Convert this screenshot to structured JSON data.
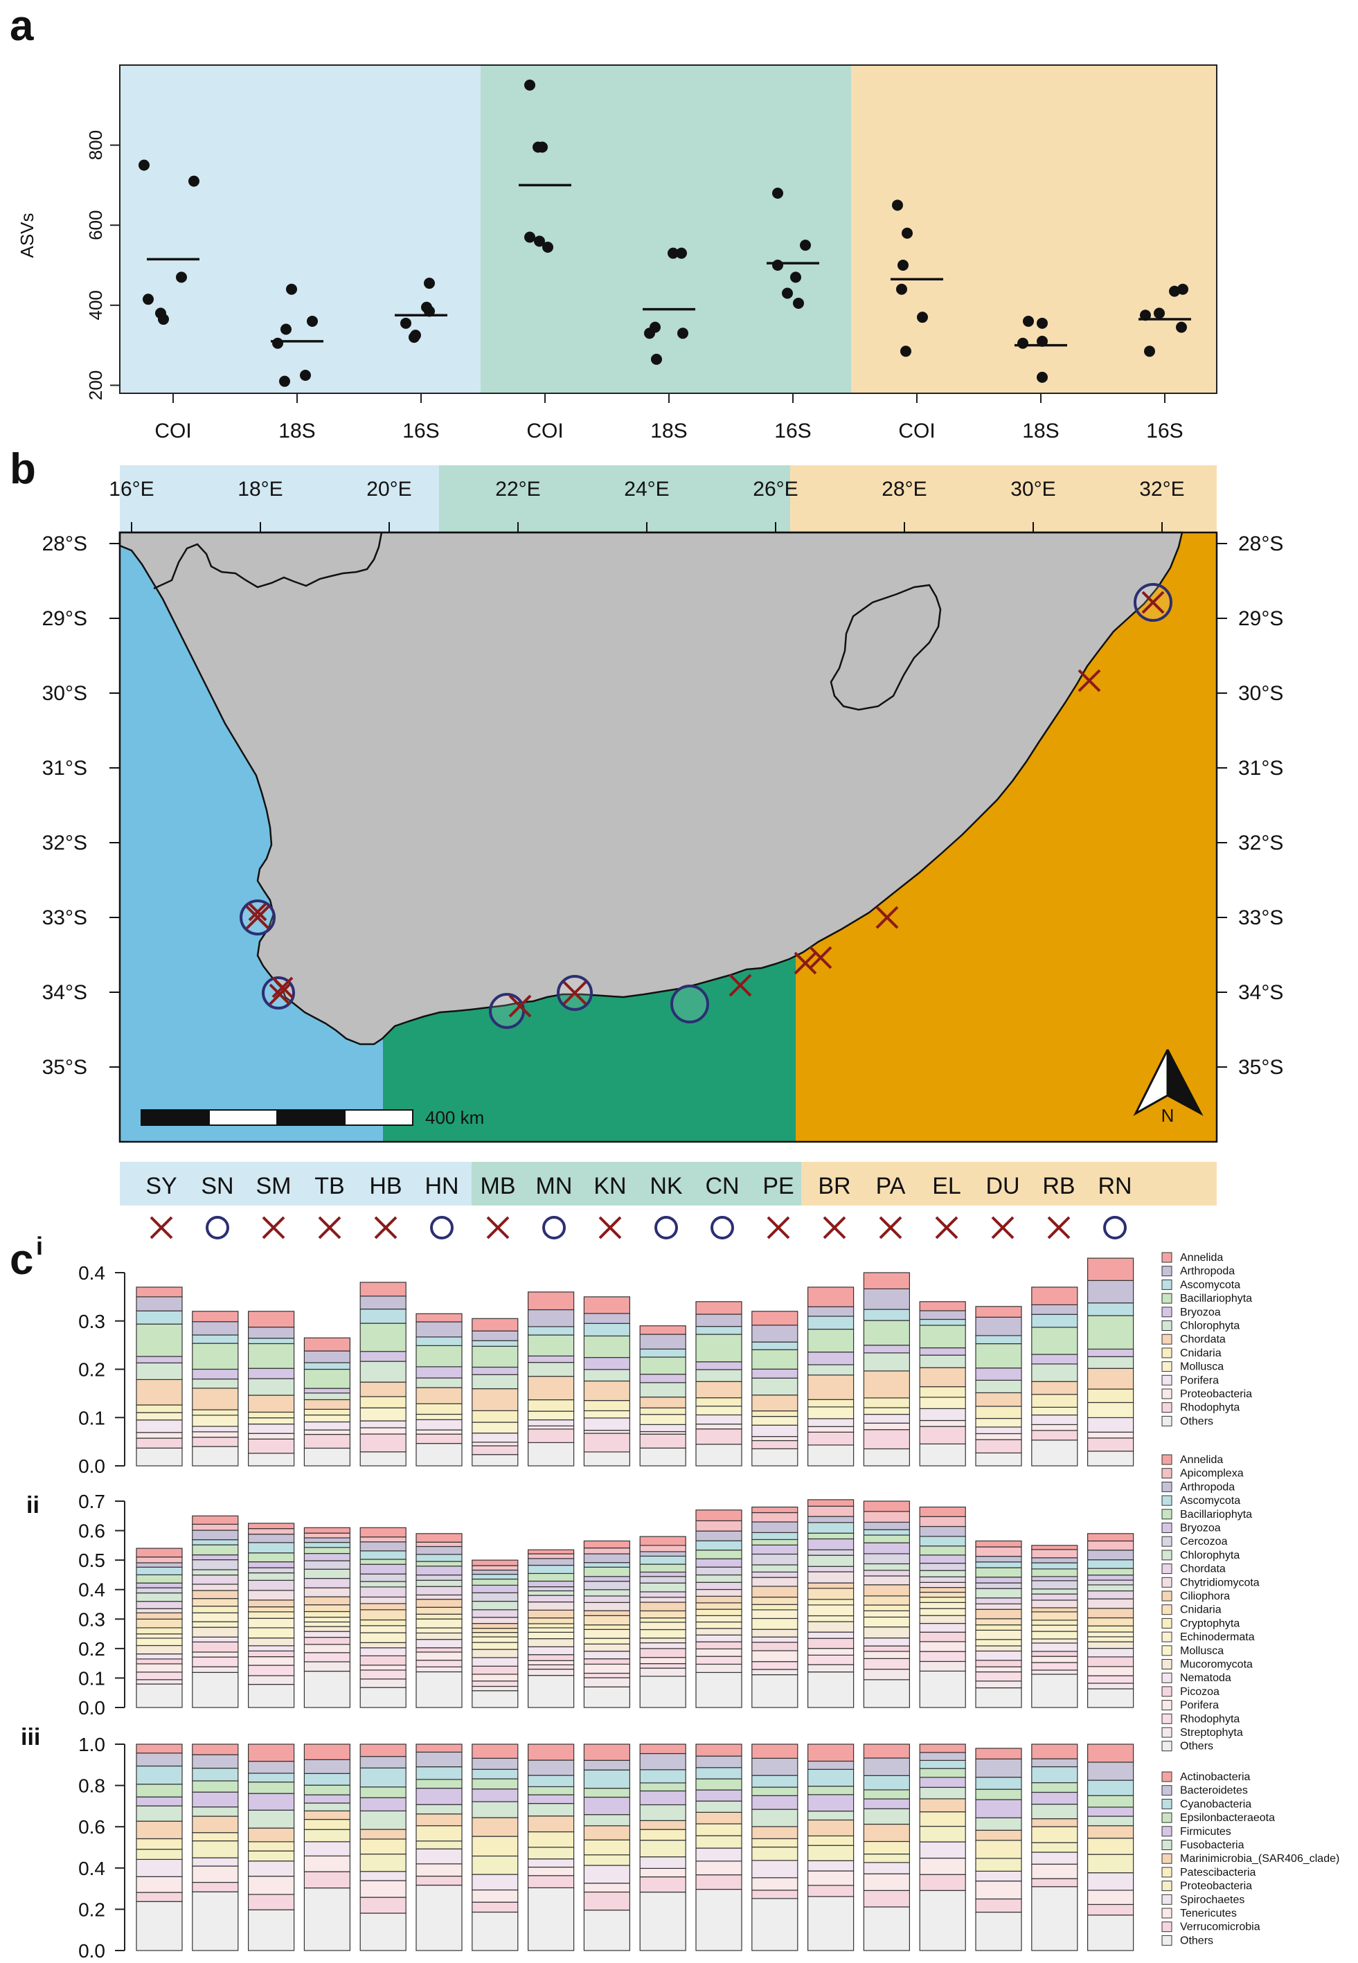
{
  "panel_labels": {
    "a": "a",
    "b": "b",
    "c": "c",
    "c_sup": "i",
    "ii": "ii",
    "iii": "iii"
  },
  "colors": {
    "west": "#d2e8f2",
    "south": "#b7dcd1",
    "east": "#f7deb1",
    "west_sea": "#73c0e2",
    "south_sea": "#1f9e73",
    "east_sea": "#e69f00",
    "land": "#bebebe",
    "cross": "#8b1a1a",
    "circle": "#2c2f73"
  },
  "chart_data": [
    {
      "type": "scatter",
      "ylabel": "ASVs",
      "ylim": [
        180,
        1000
      ],
      "yticks": [
        200,
        400,
        600,
        800
      ],
      "categories": [
        "COI",
        "18S",
        "16S",
        "COI",
        "18S",
        "16S",
        "COI",
        "18S",
        "16S"
      ],
      "regions": [
        "west",
        "west",
        "west",
        "south",
        "south",
        "south",
        "east",
        "east",
        "east"
      ],
      "points": [
        [
          750,
          710,
          470,
          415,
          380,
          365
        ],
        [
          440,
          360,
          340,
          305,
          225,
          210
        ],
        [
          455,
          395,
          385,
          355,
          325,
          320
        ],
        [
          950,
          795,
          795,
          570,
          560,
          545
        ],
        [
          530,
          530,
          345,
          330,
          330,
          265
        ],
        [
          680,
          550,
          500,
          470,
          430,
          405
        ],
        [
          650,
          580,
          500,
          440,
          370,
          285
        ],
        [
          360,
          355,
          310,
          305,
          220
        ],
        [
          440,
          435,
          380,
          375,
          345,
          285
        ]
      ],
      "means": [
        515,
        310,
        375,
        700,
        390,
        505,
        465,
        300,
        365
      ]
    },
    {
      "type": "stacked-bar",
      "id": "ci",
      "ylim": [
        0,
        0.4
      ],
      "yticks": [
        "0.0",
        "0.1",
        "0.2",
        "0.3",
        "0.4"
      ],
      "categories": [
        "SY",
        "SN",
        "SM",
        "TB",
        "HB",
        "HN",
        "MB",
        "MN",
        "KN",
        "NK",
        "CN",
        "PE",
        "BR",
        "PA",
        "EL",
        "DU",
        "RB",
        "RN"
      ],
      "legend": [
        {
          "name": "Annelida",
          "color": "#f4a3a3"
        },
        {
          "name": "Arthropoda",
          "color": "#c7c1d8"
        },
        {
          "name": "Ascomycota",
          "color": "#bcdfe3"
        },
        {
          "name": "Bacillariophyta",
          "color": "#c9e4c1"
        },
        {
          "name": "Bryozoa",
          "color": "#d6c6e6"
        },
        {
          "name": "Chlorophyta",
          "color": "#d4e6d4"
        },
        {
          "name": "Chordata",
          "color": "#f5d5b5"
        },
        {
          "name": "Cnidaria",
          "color": "#f7efc2"
        },
        {
          "name": "Mollusca",
          "color": "#f8f3cc"
        },
        {
          "name": "Porifera",
          "color": "#f1e5ef"
        },
        {
          "name": "Proteobacteria",
          "color": "#f9e9e9"
        },
        {
          "name": "Rhodophyta",
          "color": "#f6d6de"
        },
        {
          "name": "Others",
          "color": "#eeeeee"
        }
      ],
      "totals": [
        0.37,
        0.32,
        0.32,
        0.265,
        0.38,
        0.315,
        0.305,
        0.36,
        0.35,
        0.29,
        0.34,
        0.32,
        0.37,
        0.4,
        0.34,
        0.33,
        0.37,
        0.43
      ]
    },
    {
      "type": "stacked-bar",
      "id": "cii",
      "ylim": [
        0,
        0.7
      ],
      "yticks": [
        "0.0",
        "0.1",
        "0.2",
        "0.3",
        "0.4",
        "0.5",
        "0.6",
        "0.7"
      ],
      "categories": [
        "SY",
        "SN",
        "SM",
        "TB",
        "HB",
        "HN",
        "MB",
        "MN",
        "KN",
        "NK",
        "CN",
        "PE",
        "BR",
        "PA",
        "EL",
        "DU",
        "RB",
        "RN"
      ],
      "legend": [
        {
          "name": "Annelida",
          "color": "#f4a3a3"
        },
        {
          "name": "Apicomplexa",
          "color": "#f4c0c4"
        },
        {
          "name": "Arthropoda",
          "color": "#c7c1d8"
        },
        {
          "name": "Ascomycota",
          "color": "#bcdfe3"
        },
        {
          "name": "Bacillariophyta",
          "color": "#c9e4c1"
        },
        {
          "name": "Bryozoa",
          "color": "#d6c6e6"
        },
        {
          "name": "Cercozoa",
          "color": "#d9d5e2"
        },
        {
          "name": "Chlorophyta",
          "color": "#d4e6d4"
        },
        {
          "name": "Chordata",
          "color": "#e7d5e8"
        },
        {
          "name": "Chytridiomycota",
          "color": "#f0dfe3"
        },
        {
          "name": "Ciliophora",
          "color": "#f5d5b5"
        },
        {
          "name": "Cnidaria",
          "color": "#f7e2bd"
        },
        {
          "name": "Cryptophyta",
          "color": "#f7efc2"
        },
        {
          "name": "Echinodermata",
          "color": "#f9f1d0"
        },
        {
          "name": "Mollusca",
          "color": "#f8f3cc"
        },
        {
          "name": "Mucoromycota",
          "color": "#f5ead8"
        },
        {
          "name": "Nematoda",
          "color": "#f1e5ef"
        },
        {
          "name": "Picozoa",
          "color": "#f6d6de"
        },
        {
          "name": "Porifera",
          "color": "#f9e9e9"
        },
        {
          "name": "Rhodophyta",
          "color": "#f8dde6"
        },
        {
          "name": "Streptophyta",
          "color": "#f3e8ea"
        },
        {
          "name": "Others",
          "color": "#eeeeee"
        }
      ],
      "totals": [
        0.54,
        0.65,
        0.625,
        0.61,
        0.61,
        0.59,
        0.5,
        0.535,
        0.565,
        0.58,
        0.67,
        0.68,
        0.705,
        0.7,
        0.68,
        0.565,
        0.55,
        0.59
      ]
    },
    {
      "type": "stacked-bar",
      "id": "ciii",
      "ylim": [
        0,
        1.0
      ],
      "yticks": [
        "0.0",
        "0.2",
        "0.4",
        "0.6",
        "0.8",
        "1.0"
      ],
      "categories": [
        "SY",
        "SN",
        "SM",
        "TB",
        "HB",
        "HN",
        "MB",
        "MN",
        "KN",
        "NK",
        "CN",
        "PE",
        "BR",
        "PA",
        "EL",
        "DU",
        "RB",
        "RN"
      ],
      "legend": [
        {
          "name": "Actinobacteria",
          "color": "#f4a3a3"
        },
        {
          "name": "Bacteroidetes",
          "color": "#c9c5d8"
        },
        {
          "name": "Cyanobacteria",
          "color": "#bcdfe3"
        },
        {
          "name": "Epsilonbacteraeota",
          "color": "#c9e4c1"
        },
        {
          "name": "Firmicutes",
          "color": "#d6c6e6"
        },
        {
          "name": "Fusobacteria",
          "color": "#d4e6d4"
        },
        {
          "name": "Marinimicrobia_(SAR406_clade)",
          "color": "#f5d5b5"
        },
        {
          "name": "Patescibacteria",
          "color": "#f7efc2"
        },
        {
          "name": "Proteobacteria",
          "color": "#f3f0c6"
        },
        {
          "name": "Spirochaetes",
          "color": "#f1e5ef"
        },
        {
          "name": "Tenericutes",
          "color": "#f9e9e9"
        },
        {
          "name": "Verrucomicrobia",
          "color": "#f6d6de"
        },
        {
          "name": "Others",
          "color": "#eeeeee"
        }
      ],
      "totals": [
        1,
        1,
        1,
        1,
        1,
        1,
        1,
        1,
        1,
        1,
        1,
        1,
        1,
        1,
        1,
        0.98,
        1,
        1
      ]
    }
  ],
  "map": {
    "lon_ticks": [
      "16°E",
      "18°E",
      "20°E",
      "22°E",
      "24°E",
      "26°E",
      "28°E",
      "30°E",
      "32°E"
    ],
    "lat_ticks": [
      "28°S",
      "29°S",
      "30°S",
      "31°S",
      "32°S",
      "33°S",
      "34°S",
      "35°S"
    ],
    "scale_label": "400 km",
    "north_label": "N"
  },
  "sites": [
    {
      "code": "SY",
      "marker": "cross"
    },
    {
      "code": "SN",
      "marker": "circle"
    },
    {
      "code": "SM",
      "marker": "cross"
    },
    {
      "code": "TB",
      "marker": "cross"
    },
    {
      "code": "HB",
      "marker": "cross"
    },
    {
      "code": "HN",
      "marker": "circle"
    },
    {
      "code": "MB",
      "marker": "cross"
    },
    {
      "code": "MN",
      "marker": "circle"
    },
    {
      "code": "KN",
      "marker": "cross"
    },
    {
      "code": "NK",
      "marker": "circle"
    },
    {
      "code": "CN",
      "marker": "circle"
    },
    {
      "code": "PE",
      "marker": "cross"
    },
    {
      "code": "BR",
      "marker": "cross"
    },
    {
      "code": "PA",
      "marker": "cross"
    },
    {
      "code": "EL",
      "marker": "cross"
    },
    {
      "code": "DU",
      "marker": "cross"
    },
    {
      "code": "RB",
      "marker": "cross"
    },
    {
      "code": "RN",
      "marker": "circle"
    }
  ]
}
